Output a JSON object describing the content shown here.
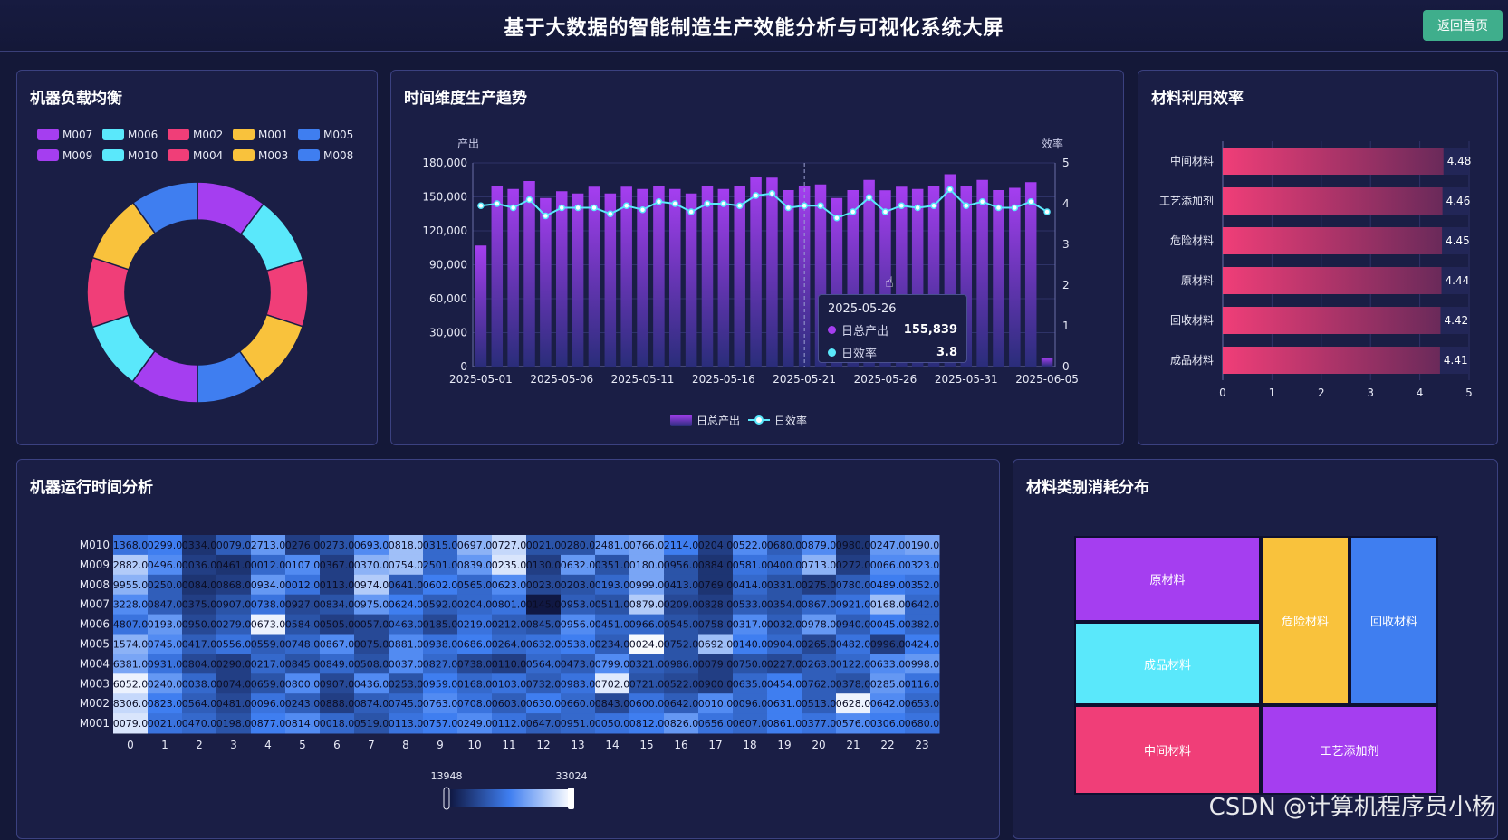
{
  "header": {
    "title": "基于大数据的智能制造生产效能分析与可视化系统大屏",
    "back_label": "返回首页"
  },
  "colors": {
    "purple": "#a53ef0",
    "cyan": "#5ae8fb",
    "pink": "#f03e78",
    "yellow": "#f9c23c",
    "blue": "#3f7ef0",
    "bg": "#141838",
    "panel": "#1a1e45"
  },
  "panels": {
    "machine_load": "机器负载均衡",
    "trend": "时间维度生产趋势",
    "material_eff": "材料利用效率",
    "runtime": "机器运行时间分析",
    "consumption": "材料类别消耗分布"
  },
  "watermark": "CSDN @计算机程序员小杨",
  "tooltip": {
    "date": "2025-05-26",
    "rows": [
      {
        "name": "日总产出",
        "value": "155,839",
        "color": "#a53ef0"
      },
      {
        "name": "日效率",
        "value": "3.8",
        "color": "#5ae8fb"
      }
    ]
  },
  "chart_data": [
    {
      "type": "pie",
      "legend": [
        "M007",
        "M006",
        "M002",
        "M001",
        "M005",
        "M009",
        "M010",
        "M004",
        "M003",
        "M008"
      ],
      "legend_colors": [
        "#a53ef0",
        "#5ae8fb",
        "#f03e78",
        "#f9c23c",
        "#3f7ef0",
        "#a53ef0",
        "#5ae8fb",
        "#f03e78",
        "#f9c23c",
        "#3f7ef0"
      ],
      "slices": [
        {
          "name": "M007",
          "value": 10.2,
          "color": "#a53ef0"
        },
        {
          "name": "M006",
          "value": 10.0,
          "color": "#5ae8fb"
        },
        {
          "name": "M002",
          "value": 9.8,
          "color": "#f03e78"
        },
        {
          "name": "M001",
          "value": 10.1,
          "color": "#f9c23c"
        },
        {
          "name": "M005",
          "value": 9.9,
          "color": "#3f7ef0"
        },
        {
          "name": "M009",
          "value": 10.0,
          "color": "#a53ef0"
        },
        {
          "name": "M010",
          "value": 9.9,
          "color": "#5ae8fb"
        },
        {
          "name": "M004",
          "value": 10.2,
          "color": "#f03e78"
        },
        {
          "name": "M003",
          "value": 10.0,
          "color": "#f9c23c"
        },
        {
          "name": "M008",
          "value": 9.9,
          "color": "#3f7ef0"
        }
      ],
      "donut": true,
      "legend_position": "top"
    },
    {
      "type": "bar",
      "y_name_left": "产出",
      "y_name_right": "效率",
      "x_tick_labels": [
        "2025-05-01",
        "2025-05-06",
        "2025-05-11",
        "2025-05-16",
        "2025-05-21",
        "2025-05-26",
        "2025-05-31",
        "2025-06-05"
      ],
      "y_left_ticks": [
        "0",
        "30,000",
        "60,000",
        "90,000",
        "120,000",
        "150,000",
        "180,000"
      ],
      "y_right_ticks": [
        "0",
        "1",
        "2",
        "3",
        "4",
        "5"
      ],
      "ylim_left": [
        0,
        180000
      ],
      "ylim_right": [
        0,
        5
      ],
      "x_start": "2025-05-01",
      "x": [
        "2025-05-01",
        "2025-05-02",
        "2025-05-03",
        "2025-05-04",
        "2025-05-05",
        "2025-05-06",
        "2025-05-07",
        "2025-05-08",
        "2025-05-09",
        "2025-05-10",
        "2025-05-11",
        "2025-05-12",
        "2025-05-13",
        "2025-05-14",
        "2025-05-15",
        "2025-05-16",
        "2025-05-17",
        "2025-05-18",
        "2025-05-19",
        "2025-05-20",
        "2025-05-21",
        "2025-05-22",
        "2025-05-23",
        "2025-05-24",
        "2025-05-25",
        "2025-05-26",
        "2025-05-27",
        "2025-05-28",
        "2025-05-29",
        "2025-05-30",
        "2025-05-31",
        "2025-06-01",
        "2025-06-02",
        "2025-06-03",
        "2025-06-04",
        "2025-06-05"
      ],
      "series": [
        {
          "name": "日总产出",
          "kind": "bar",
          "values": [
            107000,
            160000,
            157000,
            164000,
            149000,
            155000,
            153000,
            159000,
            153000,
            159000,
            157000,
            160000,
            157000,
            153000,
            160000,
            157000,
            160000,
            168000,
            167000,
            156000,
            160000,
            161000,
            149000,
            156000,
            165000,
            155839,
            159000,
            157000,
            160000,
            170000,
            160000,
            165000,
            156000,
            158000,
            163000,
            8000
          ]
        },
        {
          "name": "日效率",
          "kind": "line",
          "values": [
            3.95,
            4.0,
            3.9,
            4.1,
            3.7,
            3.9,
            3.9,
            3.9,
            3.75,
            3.95,
            3.85,
            4.05,
            4.0,
            3.8,
            4.0,
            4.0,
            3.95,
            4.2,
            4.25,
            3.9,
            3.95,
            3.95,
            3.65,
            3.8,
            4.15,
            3.8,
            3.95,
            3.9,
            3.95,
            4.35,
            3.95,
            4.05,
            3.9,
            3.9,
            4.05,
            3.8
          ]
        }
      ],
      "legend": [
        "日总产出",
        "日效率"
      ],
      "legend_position": "bottom"
    },
    {
      "type": "bar",
      "orientation": "horizontal",
      "categories": [
        "中间材料",
        "工艺添加剂",
        "危险材料",
        "原材料",
        "回收材料",
        "成品材料"
      ],
      "values": [
        4.48,
        4.46,
        4.45,
        4.44,
        4.42,
        4.41
      ],
      "xlim": [
        0,
        5
      ],
      "x_ticks": [
        "0",
        "1",
        "2",
        "3",
        "4",
        "5"
      ]
    },
    {
      "type": "heatmap",
      "y_categories": [
        "M010",
        "M009",
        "M008",
        "M007",
        "M006",
        "M005",
        "M004",
        "M003",
        "M002",
        "M001"
      ],
      "x_categories": [
        "0",
        "1",
        "2",
        "3",
        "4",
        "5",
        "6",
        "7",
        "8",
        "9",
        "10",
        "11",
        "12",
        "13",
        "14",
        "15",
        "16",
        "17",
        "18",
        "19",
        "20",
        "21",
        "22",
        "23"
      ],
      "visual_map": {
        "min": 13948,
        "max": 33024
      },
      "rows": [
        [
          "1368.0",
          "0299.0",
          "0334.0",
          "0079.0",
          "2713.0",
          "0276.0",
          "0273.0",
          "0693.0",
          "0818.0",
          "0315.0",
          "0697.0",
          "0727.0",
          "0021.0",
          "0280.0",
          "2481.0",
          "0766.0",
          "2114.0",
          "0204.0",
          "0522.0",
          "0680.0",
          "0879.0",
          "0980.0",
          "0247.0",
          "0190.0"
        ],
        [
          "2882.0",
          "0496.0",
          "0036.0",
          "0461.0",
          "0012.0",
          "0107.0",
          "0367.0",
          "0370.0",
          "0754.0",
          "2501.0",
          "0839.0",
          "0235.0",
          "0130.0",
          "0632.0",
          "0351.0",
          "0180.0",
          "0956.0",
          "0884.0",
          "0581.0",
          "0400.0",
          "0713.0",
          "0272.0",
          "0066.0",
          "0323.0"
        ],
        [
          "9955.0",
          "0250.0",
          "0084.0",
          "0868.0",
          "0934.0",
          "0012.0",
          "0113.0",
          "0974.0",
          "0641.0",
          "0602.0",
          "0565.0",
          "0623.0",
          "0023.0",
          "0203.0",
          "0193.0",
          "0999.0",
          "0413.0",
          "0769.0",
          "0414.0",
          "0331.0",
          "0275.0",
          "0780.0",
          "0489.0",
          "0352.0"
        ],
        [
          "3228.0",
          "0847.0",
          "0375.0",
          "0907.0",
          "0738.0",
          "0927.0",
          "0834.0",
          "0975.0",
          "0624.0",
          "0592.0",
          "0204.0",
          "0801.0",
          "0145.0",
          "0953.0",
          "0511.0",
          "0879.0",
          "0209.0",
          "0828.0",
          "0533.0",
          "0354.0",
          "0867.0",
          "0921.0",
          "0168.0",
          "0642.0"
        ],
        [
          "4807.0",
          "0193.0",
          "0950.0",
          "0279.0",
          "0673.0",
          "0584.0",
          "0505.0",
          "0057.0",
          "0463.0",
          "0185.0",
          "0219.0",
          "0212.0",
          "0845.0",
          "0956.0",
          "0451.0",
          "0966.0",
          "0545.0",
          "0758.0",
          "0317.0",
          "0032.0",
          "0978.0",
          "0940.0",
          "0045.0",
          "0382.0"
        ],
        [
          "1574.0",
          "0745.0",
          "0417.0",
          "0556.0",
          "0559.0",
          "0748.0",
          "0867.0",
          "0075.0",
          "0881.0",
          "0938.0",
          "0686.0",
          "0264.0",
          "0632.0",
          "0538.0",
          "0234.0",
          "0024.0",
          "0752.0",
          "0692.0",
          "0140.0",
          "0904.0",
          "0265.0",
          "0482.0",
          "0996.0",
          "0424.0"
        ],
        [
          "6381.0",
          "0931.0",
          "0804.0",
          "0290.0",
          "0217.0",
          "0845.0",
          "0849.0",
          "0508.0",
          "0037.0",
          "0827.0",
          "0738.0",
          "0110.0",
          "0564.0",
          "0473.0",
          "0799.0",
          "0321.0",
          "0986.0",
          "0079.0",
          "0750.0",
          "0227.0",
          "0263.0",
          "0122.0",
          "0633.0",
          "0998.0"
        ],
        [
          "6052.0",
          "0240.0",
          "0038.0",
          "0074.0",
          "0659.0",
          "0800.0",
          "0907.0",
          "0436.0",
          "0253.0",
          "0959.0",
          "0168.0",
          "0103.0",
          "0732.0",
          "0983.0",
          "0702.0",
          "0721.0",
          "0522.0",
          "0900.0",
          "0635.0",
          "0454.0",
          "0762.0",
          "0378.0",
          "0285.0",
          "0116.0"
        ],
        [
          "8306.0",
          "0823.0",
          "0564.0",
          "0481.0",
          "0096.0",
          "0243.0",
          "0888.0",
          "0874.0",
          "0745.0",
          "0763.0",
          "0708.0",
          "0603.0",
          "0630.0",
          "0660.0",
          "0843.0",
          "0600.0",
          "0642.0",
          "0010.0",
          "0096.0",
          "0631.0",
          "0513.0",
          "0628.0",
          "0642.0",
          "0653.0"
        ],
        [
          "0079.0",
          "0021.0",
          "0470.0",
          "0198.0",
          "0877.0",
          "0814.0",
          "0018.0",
          "0519.0",
          "0113.0",
          "0757.0",
          "0249.0",
          "0112.0",
          "0647.0",
          "0951.0",
          "0050.0",
          "0812.0",
          "0826.0",
          "0656.0",
          "0607.0",
          "0861.0",
          "0377.0",
          "0576.0",
          "0306.0",
          "0680.0"
        ]
      ],
      "intensity": [
        [
          0.45,
          0.5,
          0.15,
          0.35,
          0.6,
          0.2,
          0.3,
          0.55,
          0.75,
          0.4,
          0.7,
          0.85,
          0.3,
          0.3,
          0.6,
          0.65,
          0.5,
          0.2,
          0.55,
          0.35,
          0.55,
          0.15,
          0.6,
          0.65
        ],
        [
          0.8,
          0.55,
          0.2,
          0.15,
          0.4,
          0.55,
          0.2,
          0.7,
          0.75,
          0.4,
          0.6,
          0.9,
          0.2,
          0.6,
          0.3,
          0.65,
          0.3,
          0.15,
          0.45,
          0.4,
          0.7,
          0.2,
          0.55,
          0.55
        ],
        [
          0.7,
          0.35,
          0.15,
          0.2,
          0.6,
          0.45,
          0.2,
          0.8,
          0.35,
          0.5,
          0.4,
          0.55,
          0.25,
          0.3,
          0.4,
          0.65,
          0.3,
          0.15,
          0.4,
          0.3,
          0.2,
          0.35,
          0.5,
          0.45
        ],
        [
          0.55,
          0.35,
          0.2,
          0.3,
          0.45,
          0.25,
          0.3,
          0.6,
          0.5,
          0.35,
          0.4,
          0.45,
          0.02,
          0.35,
          0.3,
          0.8,
          0.25,
          0.2,
          0.35,
          0.3,
          0.4,
          0.45,
          0.75,
          0.4
        ],
        [
          0.45,
          0.6,
          0.25,
          0.35,
          0.95,
          0.3,
          0.2,
          0.25,
          0.4,
          0.25,
          0.45,
          0.35,
          0.3,
          0.55,
          0.4,
          0.4,
          0.3,
          0.25,
          0.55,
          0.35,
          0.6,
          0.35,
          0.5,
          0.4
        ],
        [
          0.7,
          0.55,
          0.35,
          0.45,
          0.35,
          0.4,
          0.55,
          0.25,
          0.55,
          0.45,
          0.5,
          0.4,
          0.45,
          0.5,
          0.35,
          0.98,
          0.3,
          0.75,
          0.5,
          0.4,
          0.25,
          0.45,
          0.2,
          0.5
        ],
        [
          0.65,
          0.45,
          0.25,
          0.2,
          0.4,
          0.3,
          0.4,
          0.3,
          0.55,
          0.4,
          0.25,
          0.2,
          0.4,
          0.35,
          0.55,
          0.35,
          0.3,
          0.2,
          0.3,
          0.25,
          0.35,
          0.4,
          0.55,
          0.6
        ],
        [
          0.95,
          0.6,
          0.4,
          0.2,
          0.3,
          0.55,
          0.25,
          0.55,
          0.3,
          0.5,
          0.4,
          0.45,
          0.35,
          0.45,
          0.92,
          0.3,
          0.25,
          0.2,
          0.4,
          0.5,
          0.35,
          0.3,
          0.6,
          0.45
        ],
        [
          0.85,
          0.5,
          0.35,
          0.25,
          0.45,
          0.35,
          0.2,
          0.35,
          0.4,
          0.55,
          0.45,
          0.35,
          0.5,
          0.4,
          0.25,
          0.45,
          0.35,
          0.55,
          0.4,
          0.5,
          0.35,
          0.95,
          0.55,
          0.4
        ],
        [
          0.9,
          0.45,
          0.4,
          0.3,
          0.5,
          0.55,
          0.4,
          0.3,
          0.45,
          0.5,
          0.55,
          0.45,
          0.35,
          0.4,
          0.45,
          0.5,
          0.6,
          0.45,
          0.4,
          0.5,
          0.45,
          0.55,
          0.5,
          0.45
        ]
      ]
    },
    {
      "type": "treemap",
      "items": [
        {
          "name": "原材料",
          "color": "#a53ef0"
        },
        {
          "name": "成品材料",
          "color": "#5ae8fb"
        },
        {
          "name": "中间材料",
          "color": "#f03e78"
        },
        {
          "name": "危险材料",
          "color": "#f9c23c"
        },
        {
          "name": "回收材料",
          "color": "#3f7ef0"
        },
        {
          "name": "工艺添加剂",
          "color": "#a53ef0"
        }
      ]
    }
  ]
}
